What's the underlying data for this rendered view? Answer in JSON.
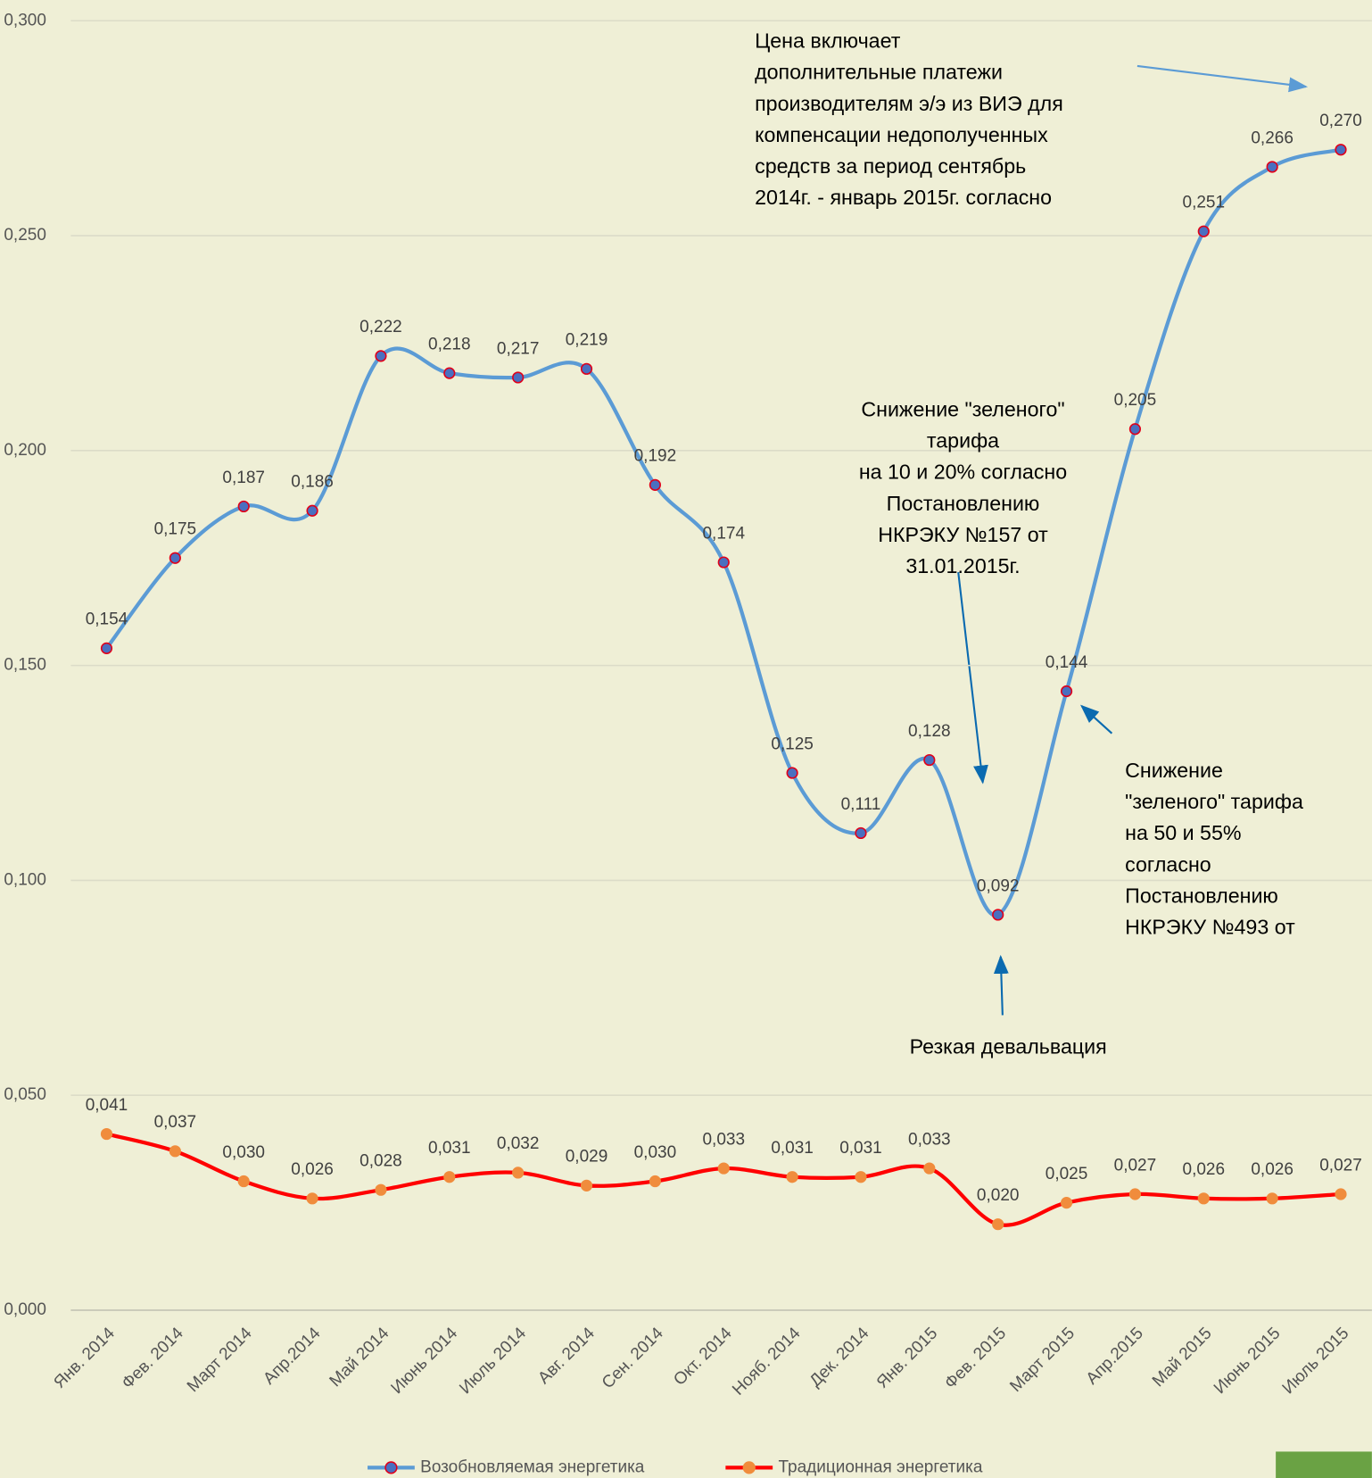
{
  "chart_data": {
    "type": "line",
    "categories": [
      "Янв. 2014",
      "Фев. 2014",
      "Март 2014",
      "Апр.2014",
      "Май 2014",
      "Июнь 2014",
      "Июль 2014",
      "Авг. 2014",
      "Сен. 2014",
      "Окт. 2014",
      "Нояб. 2014",
      "Дек. 2014",
      "Янв. 2015",
      "Фев. 2015",
      "Март 2015",
      "Апр.2015",
      "Май 2015",
      "Июнь 2015",
      "Июль 2015"
    ],
    "series": [
      {
        "name": "Возобновляемая энергетика",
        "color": "#5b9bd5",
        "marker_color": "#4a6fc0",
        "marker_edge": "#e0001a",
        "values": [
          0.154,
          0.175,
          0.187,
          0.186,
          0.222,
          0.218,
          0.217,
          0.219,
          0.192,
          0.174,
          0.125,
          0.111,
          0.128,
          0.092,
          0.144,
          0.205,
          0.251,
          0.266,
          0.27
        ],
        "value_labels": [
          "0,154",
          "0,175",
          "0,187",
          "0,186",
          "0,222",
          "0,218",
          "0,217",
          "0,219",
          "0,192",
          "0,174",
          "0,125",
          "0,111",
          "0,128",
          "0,092",
          "0,144",
          "0,205",
          "0,251",
          "0,266",
          "0,270"
        ]
      },
      {
        "name": "Традиционная энергетика",
        "color": "#ff0000",
        "marker_color": "#f08c3c",
        "marker_edge": "#f08c3c",
        "values": [
          0.041,
          0.037,
          0.03,
          0.026,
          0.028,
          0.031,
          0.032,
          0.029,
          0.03,
          0.033,
          0.031,
          0.031,
          0.033,
          0.02,
          0.025,
          0.027,
          0.026,
          0.026,
          0.027
        ],
        "value_labels": [
          "0,041",
          "0,037",
          "0,030",
          "0,026",
          "0,028",
          "0,031",
          "0,032",
          "0,029",
          "0,030",
          "0,033",
          "0,031",
          "0,031",
          "0,033",
          "0,020",
          "0,025",
          "0,027",
          "0,026",
          "0,026",
          "0,027"
        ]
      }
    ],
    "ylim": [
      0,
      0.3
    ],
    "yticks": [
      {
        "value": 0,
        "label": "0,000"
      },
      {
        "value": 0.05,
        "label": "0,050"
      },
      {
        "value": 0.1,
        "label": "0,100"
      },
      {
        "value": 0.15,
        "label": "0,150"
      },
      {
        "value": 0.2,
        "label": "0,200"
      },
      {
        "value": 0.25,
        "label": "0,250"
      },
      {
        "value": 0.3,
        "label": "0,300"
      }
    ],
    "grid": true,
    "legend": "bottom",
    "annotations": [
      {
        "lines": [
          "Цена включает",
          "дополнительные платежи",
          "производителям э/э из ВИЭ для",
          "компенсации недополученных",
          "средств за период сентябрь",
          "2014г. - январь 2015г. согласно"
        ]
      },
      {
        "lines": [
          "Снижение \"зеленого\"",
          "тарифа",
          "на 10 и 20% согласно",
          "Постановлению",
          "НКРЭКУ №157 от",
          "31.01.2015г."
        ]
      },
      {
        "lines": [
          "Снижение",
          "\"зеленого\" тарифа",
          "на 50 и 55%",
          "согласно",
          "Постановлению",
          "НКРЭКУ №493 от"
        ]
      },
      {
        "lines": [
          "Резкая девальвация"
        ]
      }
    ]
  }
}
